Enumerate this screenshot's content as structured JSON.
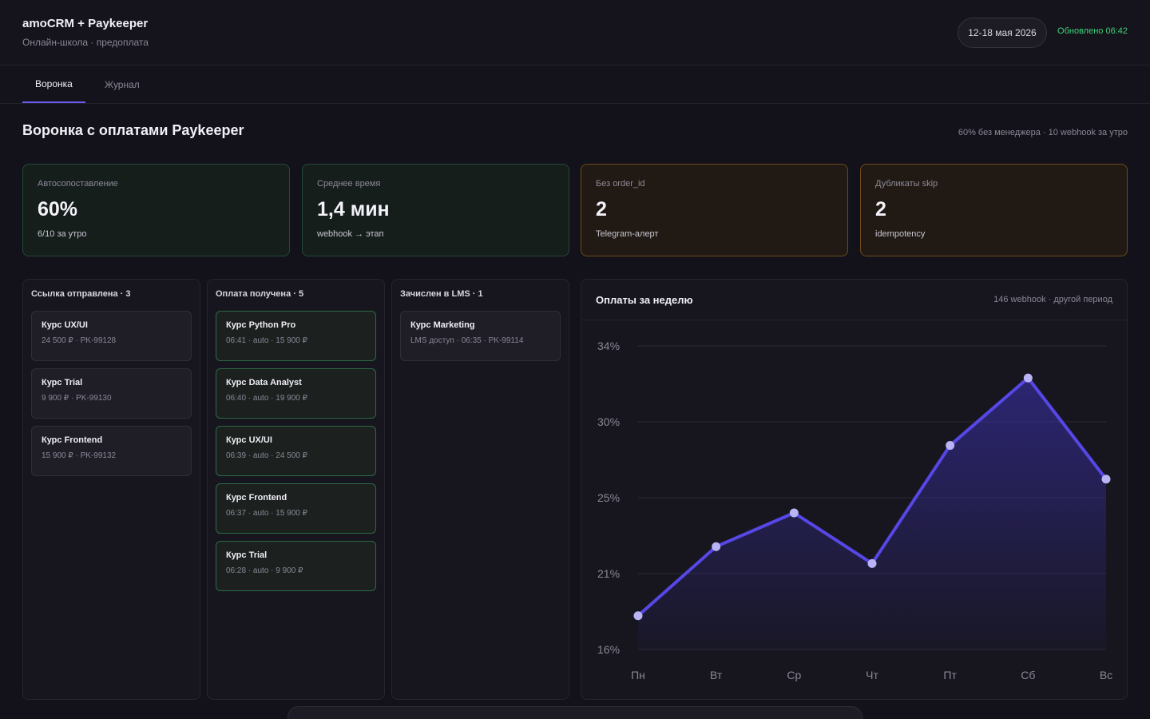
{
  "header": {
    "title": "amoCRM + Paykeeper",
    "subtitle": "Онлайн-школа · предоплата",
    "date_range": "12-18 мая 2026",
    "updated": "Обновлено 06:42"
  },
  "tabs": [
    {
      "label": "Воронка",
      "active": true
    },
    {
      "label": "Журнал",
      "active": false
    }
  ],
  "section": {
    "title": "Воронка с оплатами Paykeeper",
    "note": "60% без менеджера · 10 webhook за утро"
  },
  "kpis": [
    {
      "label": "Автосопоставление",
      "value": "60%",
      "caption": "6/10 за утро",
      "tone": "green"
    },
    {
      "label": "Среднее время",
      "value": "1,4 мин",
      "caption": "webhook → этап",
      "tone": "green"
    },
    {
      "label": "Без order_id",
      "value": "2",
      "caption": "Telegram-алерт",
      "tone": "orange"
    },
    {
      "label": "Дубликаты skip",
      "value": "2",
      "caption": "idempotency",
      "tone": "orange"
    }
  ],
  "columns": [
    {
      "title": "Ссылка отправлена · 3",
      "cards": [
        {
          "title": "Курс UX/UI",
          "meta": "24 500 ₽ · PK-99128"
        },
        {
          "title": "Курс Trial",
          "meta": "9 900 ₽ · PK-99130"
        },
        {
          "title": "Курс Frontend",
          "meta": "15 900 ₽ · PK-99132"
        }
      ]
    },
    {
      "title": "Оплата получена · 5",
      "cards": [
        {
          "title": "Курс Python Pro",
          "meta": "06:41 · auto · 15 900 ₽"
        },
        {
          "title": "Курс Data Analyst",
          "meta": "06:40 · auto · 19 900 ₽"
        },
        {
          "title": "Курс UX/UI",
          "meta": "06:39 · auto · 24 500 ₽"
        },
        {
          "title": "Курс Frontend",
          "meta": "06:37 · auto · 15 900 ₽"
        },
        {
          "title": "Курс Trial",
          "meta": "06:28 · auto · 9 900 ₽"
        }
      ]
    },
    {
      "title": "Зачислен в LMS · 1",
      "cards": [
        {
          "title": "Курс Marketing",
          "meta": "LMS доступ · 06:35 · PK-99114"
        }
      ]
    }
  ],
  "chart": {
    "title": "Оплаты за неделю",
    "note": "146 webhook · другой период"
  },
  "colors": {
    "accent": "#5647e6",
    "point": "#b9b4f5",
    "ok": "#3fd07a",
    "warn": "#6d4a1a"
  },
  "chart_data": {
    "type": "area",
    "categories": [
      "Пн",
      "Вт",
      "Ср",
      "Чт",
      "Пт",
      "Сб",
      "Вс"
    ],
    "values": [
      18,
      22.1,
      24.1,
      21.1,
      28.1,
      32.1,
      26.1
    ],
    "yticks": [
      "16%",
      "21%",
      "25%",
      "30%",
      "34%"
    ],
    "ylim": [
      16,
      34
    ],
    "grid": true,
    "title": "Оплаты за неделю"
  }
}
